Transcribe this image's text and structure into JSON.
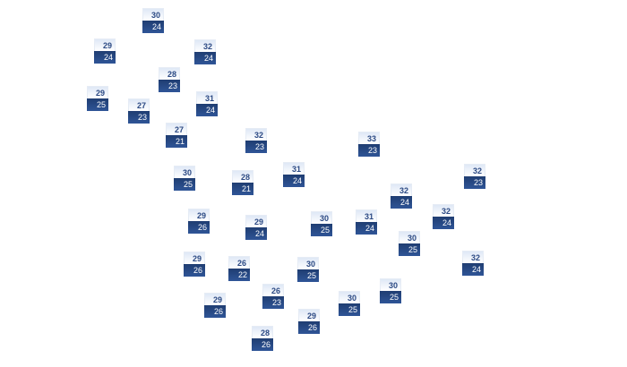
{
  "colors": {
    "high_text": "#2c4a84",
    "low_background": "#2a4a85"
  },
  "stations": [
    {
      "high": "30",
      "low": "24"
    },
    {
      "high": "29",
      "low": "24"
    },
    {
      "high": "32",
      "low": "24"
    },
    {
      "high": "28",
      "low": "23"
    },
    {
      "high": "29",
      "low": "25"
    },
    {
      "high": "27",
      "low": "23"
    },
    {
      "high": "31",
      "low": "24"
    },
    {
      "high": "27",
      "low": "21"
    },
    {
      "high": "32",
      "low": "23"
    },
    {
      "high": "33",
      "low": "23"
    },
    {
      "high": "30",
      "low": "25"
    },
    {
      "high": "28",
      "low": "21"
    },
    {
      "high": "31",
      "low": "24"
    },
    {
      "high": "32",
      "low": "23"
    },
    {
      "high": "32",
      "low": "24"
    },
    {
      "high": "29",
      "low": "26"
    },
    {
      "high": "29",
      "low": "24"
    },
    {
      "high": "30",
      "low": "25"
    },
    {
      "high": "31",
      "low": "24"
    },
    {
      "high": "32",
      "low": "24"
    },
    {
      "high": "30",
      "low": "25"
    },
    {
      "high": "29",
      "low": "26"
    },
    {
      "high": "26",
      "low": "22"
    },
    {
      "high": "30",
      "low": "25"
    },
    {
      "high": "32",
      "low": "24"
    },
    {
      "high": "26",
      "low": "23"
    },
    {
      "high": "30",
      "low": "25"
    },
    {
      "high": "29",
      "low": "26"
    },
    {
      "high": "30",
      "low": "25"
    },
    {
      "high": "29",
      "low": "26"
    },
    {
      "high": "28",
      "low": "26"
    }
  ]
}
